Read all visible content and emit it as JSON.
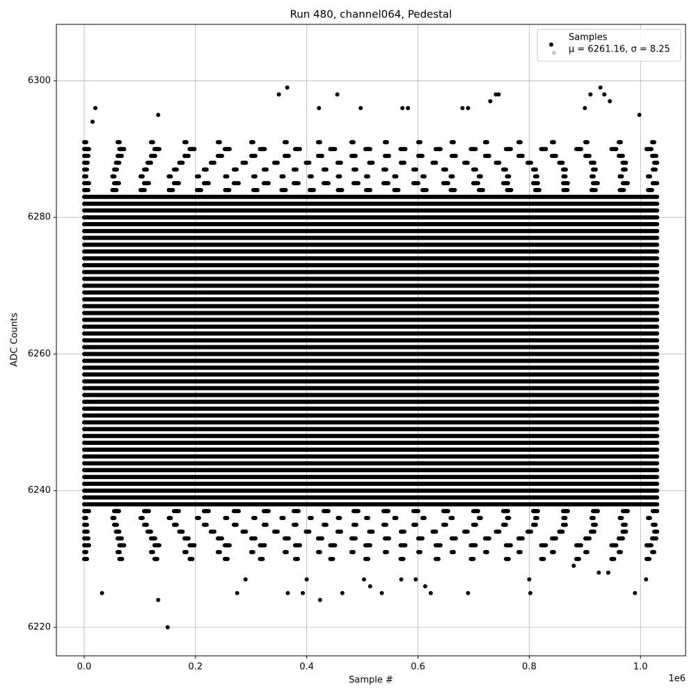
{
  "chart_data": {
    "type": "scatter",
    "title": "Run 480, channel064, Pedestal",
    "x_label": "Sample #",
    "y_label": "ADC Counts",
    "x_offset_label": "1e6",
    "xlim": [
      -50000,
      1081000
    ],
    "ylim": [
      6215.82,
      6308.25
    ],
    "xticks": [
      {
        "value": 0,
        "label": "0.0"
      },
      {
        "value": 200000,
        "label": "0.2"
      },
      {
        "value": 400000,
        "label": "0.4"
      },
      {
        "value": 600000,
        "label": "0.6"
      },
      {
        "value": 800000,
        "label": "0.8"
      },
      {
        "value": 1000000,
        "label": "1.0"
      }
    ],
    "yticks": [
      6220,
      6240,
      6260,
      6280,
      6300
    ],
    "grid": true,
    "legend": "upper right",
    "legend_entries": [
      "Samples",
      "μ = 6261.16, σ = 8.25"
    ],
    "band_x": [
      0,
      1030000
    ],
    "dense_levels": [
      6238,
      6239,
      6240,
      6241,
      6242,
      6243,
      6244,
      6245,
      6246,
      6247,
      6248,
      6249,
      6250,
      6251,
      6252,
      6253,
      6254,
      6255,
      6256,
      6257,
      6258,
      6259,
      6260,
      6261,
      6262,
      6263,
      6264,
      6265,
      6266,
      6267,
      6268,
      6269,
      6270,
      6271,
      6272,
      6273,
      6274,
      6275,
      6276,
      6277,
      6278,
      6279,
      6280,
      6281,
      6282,
      6283
    ],
    "sparse_levels": [
      6230,
      6231,
      6232,
      6233,
      6234,
      6235,
      6236,
      6237,
      6284,
      6285,
      6286,
      6287,
      6288,
      6289,
      6290,
      6291
    ],
    "series": [
      {
        "name": "Samples",
        "color": "#000000",
        "x": [
          150000,
          133000,
          424000,
          32000,
          275000,
          366000,
          393000,
          464000,
          535000,
          623000,
          690000,
          802000,
          990000,
          133000,
          20000,
          350000,
          365000,
          455000,
          497000,
          422000,
          730000,
          740000,
          745000,
          900000,
          910000,
          928000,
          935000,
          945000,
          998000,
          680000,
          690000,
          572000,
          582000,
          15000,
          290000,
          400000,
          503000,
          1010000,
          925000,
          942000,
          596000,
          613000,
          800000,
          514000,
          570000,
          880000
        ],
        "y": [
          6220,
          6224,
          6224,
          6225,
          6225,
          6225,
          6225,
          6225,
          6225,
          6225,
          6225,
          6225,
          6225,
          6295,
          6296,
          6298,
          6299,
          6298,
          6296,
          6296,
          6297,
          6298,
          6298,
          6296,
          6298,
          6299,
          6298,
          6297,
          6295,
          6296,
          6296,
          6296,
          6296,
          6294,
          6227,
          6227,
          6227,
          6227,
          6228,
          6228,
          6227,
          6226,
          6227,
          6226,
          6227,
          6229
        ]
      }
    ]
  }
}
